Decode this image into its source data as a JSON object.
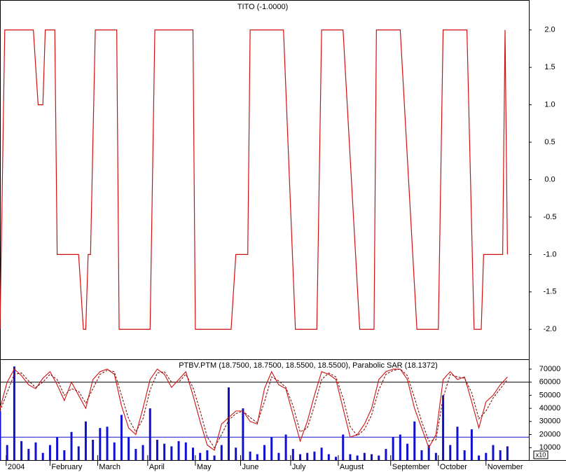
{
  "chart_data": [
    {
      "type": "step-line",
      "title": "TITO (-1.0000)",
      "color": "#d01010",
      "x": [
        0,
        2,
        14,
        16,
        18,
        19,
        23,
        24,
        33,
        35,
        36,
        37,
        38,
        40,
        49,
        50,
        63,
        65,
        81,
        82,
        97,
        99,
        104,
        105,
        119,
        124,
        133,
        135,
        144,
        151,
        157,
        158,
        168,
        175,
        184,
        186,
        196,
        199,
        202,
        203,
        211,
        212,
        213
      ],
      "values": [
        -2,
        2,
        2,
        1,
        1,
        2,
        2,
        -1,
        -1,
        -2,
        -2,
        -1,
        -1,
        2,
        2,
        -2,
        -2,
        2,
        2,
        -2,
        -2,
        -1,
        -1,
        2,
        2,
        -2,
        -2,
        2,
        2,
        -2,
        -2,
        2,
        2,
        -2,
        -2,
        2,
        2,
        -2,
        -2,
        -1,
        -1,
        2,
        -1
      ],
      "xlim": [
        0,
        222
      ],
      "ylim": [
        -2.4,
        2.4
      ],
      "yticks": [
        {
          "value": 2,
          "label": "2.0"
        },
        {
          "value": 1.5,
          "label": "1.5"
        },
        {
          "value": 1,
          "label": "1.0"
        },
        {
          "value": 0.5,
          "label": "0.5"
        },
        {
          "value": 0,
          "label": "0.0"
        },
        {
          "value": -0.5,
          "label": "-0.5"
        },
        {
          "value": -1,
          "label": "-1.0"
        },
        {
          "value": -1.5,
          "label": "-1.5"
        },
        {
          "value": -2,
          "label": "-2.0"
        }
      ]
    },
    {
      "type": "combo",
      "title": "PTBV.PTM (18.7500, 18.7500, 18.5500, 18.5500), Parabolic SAR (18.1372)",
      "x": [
        0,
        3,
        6,
        9,
        12,
        15,
        18,
        21,
        24,
        27,
        30,
        33,
        36,
        39,
        42,
        45,
        48,
        51,
        54,
        57,
        60,
        63,
        66,
        69,
        72,
        75,
        78,
        81,
        84,
        87,
        90,
        93,
        96,
        99,
        102,
        105,
        108,
        111,
        114,
        117,
        120,
        123,
        126,
        129,
        132,
        135,
        138,
        141,
        144,
        147,
        150,
        153,
        156,
        159,
        162,
        165,
        168,
        171,
        174,
        177,
        180,
        183,
        186,
        189,
        192,
        195,
        198,
        201,
        204,
        207,
        210,
        213
      ],
      "series": [
        {
          "kind": "bar",
          "color": "#1010d0",
          "values": [
            38000,
            12000,
            72000,
            15000,
            9000,
            14000,
            6000,
            12000,
            18000,
            8000,
            22000,
            11000,
            30000,
            16000,
            25000,
            26000,
            14000,
            35000,
            18000,
            9000,
            12000,
            40000,
            16000,
            13000,
            11000,
            15000,
            14000,
            10000,
            6000,
            8000,
            4000,
            12000,
            56000,
            10000,
            40000,
            7000,
            5000,
            12000,
            18000,
            6000,
            20000,
            9000,
            5000,
            6000,
            7000,
            10000,
            5000,
            3000,
            20000,
            5000,
            4000,
            6000,
            5000,
            4000,
            9000,
            18000,
            20000,
            13000,
            30000,
            8000,
            12000,
            6000,
            50000,
            12000,
            26000,
            8000,
            24000,
            4000,
            6000,
            12000,
            8000,
            11000
          ]
        },
        {
          "kind": "line",
          "color": "#d01010",
          "values": [
            40000,
            60000,
            70000,
            65000,
            58000,
            55000,
            63000,
            68000,
            58000,
            46000,
            60000,
            50000,
            40000,
            62000,
            68000,
            70000,
            66000,
            42000,
            25000,
            20000,
            40000,
            62000,
            70000,
            66000,
            56000,
            62000,
            68000,
            50000,
            30000,
            12000,
            8000,
            28000,
            33000,
            38000,
            38000,
            30000,
            28000,
            55000,
            68000,
            58000,
            55000,
            35000,
            15000,
            30000,
            50000,
            68000,
            66000,
            62000,
            40000,
            18000,
            20000,
            28000,
            40000,
            62000,
            68000,
            70000,
            70000,
            62000,
            40000,
            25000,
            10000,
            20000,
            62000,
            68000,
            62000,
            64000,
            45000,
            25000,
            45000,
            50000,
            58000,
            64000
          ]
        },
        {
          "kind": "dashed-line",
          "color": "#801010",
          "values": [
            38000,
            52000,
            66000,
            67000,
            61000,
            56000,
            60000,
            66000,
            62000,
            50000,
            55000,
            53000,
            44000,
            55000,
            66000,
            69000,
            68000,
            50000,
            32000,
            22000,
            32000,
            54000,
            67000,
            68000,
            60000,
            60000,
            66000,
            56000,
            38000,
            18000,
            10000,
            20000,
            31000,
            36000,
            38000,
            33000,
            29000,
            45000,
            64000,
            61000,
            56000,
            42000,
            22000,
            25000,
            42000,
            62000,
            67000,
            64000,
            48000,
            26000,
            19000,
            24000,
            35000,
            54000,
            66000,
            69000,
            70000,
            65000,
            48000,
            30000,
            15000,
            16000,
            48000,
            66000,
            64000,
            63000,
            52000,
            32000,
            38000,
            48000,
            55000,
            62000
          ]
        }
      ],
      "hlines": [
        {
          "value": 60000,
          "color": "#000000"
        },
        {
          "value": 18000,
          "color": "#1010d0"
        }
      ],
      "xlim": [
        0,
        222
      ],
      "ylim": [
        500,
        77500
      ],
      "yticks": [
        70000,
        60000,
        50000,
        40000,
        30000,
        20000,
        10000
      ],
      "xticks": [
        {
          "value": 2.6,
          "label": "2004"
        },
        {
          "value": 21,
          "label": "February"
        },
        {
          "value": 41,
          "label": "March"
        },
        {
          "value": 62,
          "label": "April"
        },
        {
          "value": 82,
          "label": "May"
        },
        {
          "value": 101,
          "label": "June"
        },
        {
          "value": 122,
          "label": "July"
        },
        {
          "value": 142,
          "label": "August"
        },
        {
          "value": 164,
          "label": "September"
        },
        {
          "value": 184,
          "label": "October"
        },
        {
          "value": 204,
          "label": "November"
        }
      ],
      "axis_note": "x10"
    }
  ]
}
